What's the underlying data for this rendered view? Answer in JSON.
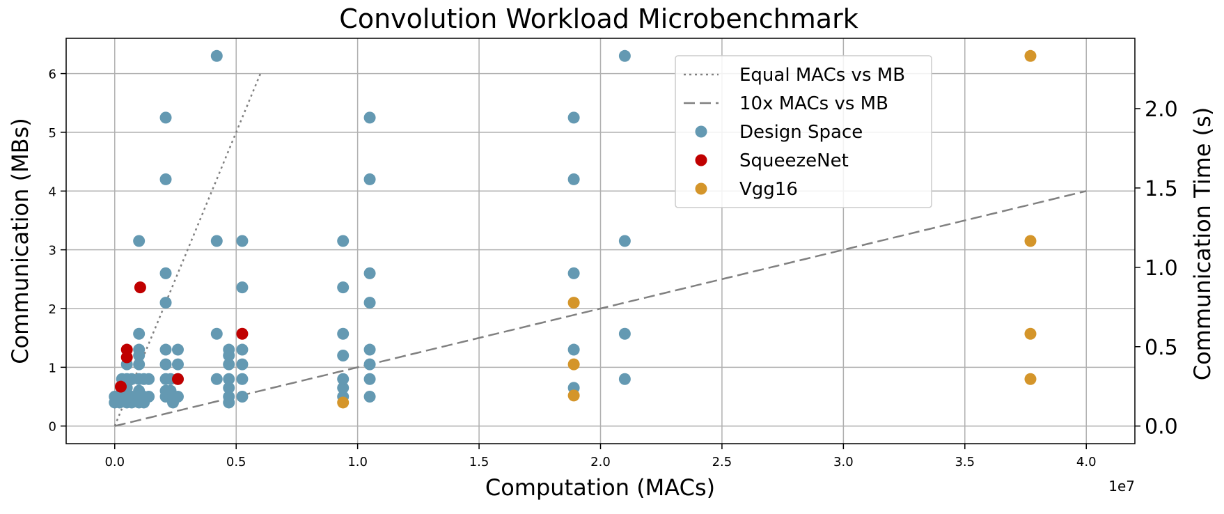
{
  "chart_data": {
    "type": "scatter",
    "title": "Convolution Workload Microbenchmark",
    "xlabel": "Computation (MACs)",
    "ylabel": "Communication (MBs)",
    "y2label": "Communication Time (s)",
    "x_offset_label": "1e7",
    "xlim": [
      -2000000,
      42000000
    ],
    "ylim": [
      -0.3,
      6.6
    ],
    "y2lim": [
      -0.111,
      2.443
    ],
    "x_ticks": [
      0,
      5000000,
      10000000,
      15000000,
      20000000,
      25000000,
      30000000,
      35000000,
      40000000
    ],
    "x_tick_labels": [
      "0.0",
      "0.5",
      "1.0",
      "1.5",
      "2.0",
      "2.5",
      "3.0",
      "3.5",
      "4.0"
    ],
    "y_ticks": [
      0,
      1,
      2,
      3,
      4,
      5,
      6
    ],
    "y_tick_labels": [
      "0",
      "1",
      "2",
      "3",
      "4",
      "5",
      "6"
    ],
    "y2_ticks": [
      0,
      0.5,
      1.0,
      1.5,
      2.0
    ],
    "y2_tick_labels": [
      "0.0",
      "0.5",
      "1.0",
      "1.5",
      "2.0"
    ],
    "grid": true,
    "legend_position": "top-right",
    "lines": [
      {
        "name": "Equal MACs vs MB",
        "style": "dotted",
        "color": "#808080",
        "x": [
          0,
          6000000
        ],
        "y": [
          0,
          6.0
        ]
      },
      {
        "name": "10x MACs vs MB",
        "style": "dashed",
        "color": "#808080",
        "x": [
          0,
          40000000
        ],
        "y": [
          0,
          4.0
        ]
      }
    ],
    "series": [
      {
        "name": "Design Space",
        "color": "#6499b2",
        "points": [
          [
            0,
            0.4
          ],
          [
            0,
            0.5
          ],
          [
            200000,
            0.4
          ],
          [
            200000,
            0.5
          ],
          [
            300000,
            0.45
          ],
          [
            300000,
            0.6
          ],
          [
            300000,
            0.8
          ],
          [
            500000,
            0.4
          ],
          [
            500000,
            0.5
          ],
          [
            500000,
            0.65
          ],
          [
            500000,
            0.8
          ],
          [
            500000,
            1.05
          ],
          [
            700000,
            0.4
          ],
          [
            700000,
            0.5
          ],
          [
            700000,
            0.8
          ],
          [
            1000000,
            0.4
          ],
          [
            1000000,
            0.5
          ],
          [
            1000000,
            0.6
          ],
          [
            1000000,
            0.8
          ],
          [
            1000000,
            1.05
          ],
          [
            1000000,
            1.2
          ],
          [
            1000000,
            1.3
          ],
          [
            1000000,
            1.57
          ],
          [
            1000000,
            3.15
          ],
          [
            1200000,
            0.4
          ],
          [
            1200000,
            0.5
          ],
          [
            1200000,
            0.8
          ],
          [
            1400000,
            0.5
          ],
          [
            1400000,
            0.8
          ],
          [
            2100000,
            0.5
          ],
          [
            2100000,
            0.6
          ],
          [
            2100000,
            0.8
          ],
          [
            2100000,
            1.05
          ],
          [
            2100000,
            1.3
          ],
          [
            2100000,
            2.1
          ],
          [
            2100000,
            2.6
          ],
          [
            2100000,
            4.2
          ],
          [
            2100000,
            5.25
          ],
          [
            2300000,
            0.5
          ],
          [
            2300000,
            0.6
          ],
          [
            2300000,
            0.8
          ],
          [
            2400000,
            0.4
          ],
          [
            2400000,
            0.5
          ],
          [
            2600000,
            0.5
          ],
          [
            2600000,
            0.8
          ],
          [
            2600000,
            1.05
          ],
          [
            2600000,
            1.3
          ],
          [
            4200000,
            0.8
          ],
          [
            4200000,
            1.57
          ],
          [
            4200000,
            3.15
          ],
          [
            4200000,
            6.3
          ],
          [
            4700000,
            0.4
          ],
          [
            4700000,
            0.5
          ],
          [
            4700000,
            0.65
          ],
          [
            4700000,
            0.8
          ],
          [
            4700000,
            1.05
          ],
          [
            4700000,
            1.2
          ],
          [
            4700000,
            1.3
          ],
          [
            5250000,
            0.5
          ],
          [
            5250000,
            0.8
          ],
          [
            5250000,
            1.05
          ],
          [
            5250000,
            1.3
          ],
          [
            5250000,
            2.36
          ],
          [
            5250000,
            3.15
          ],
          [
            9400000,
            0.5
          ],
          [
            9400000,
            0.65
          ],
          [
            9400000,
            0.8
          ],
          [
            9400000,
            1.2
          ],
          [
            9400000,
            1.57
          ],
          [
            9400000,
            2.36
          ],
          [
            9400000,
            3.15
          ],
          [
            10500000,
            0.5
          ],
          [
            10500000,
            0.8
          ],
          [
            10500000,
            1.05
          ],
          [
            10500000,
            1.3
          ],
          [
            10500000,
            2.1
          ],
          [
            10500000,
            2.6
          ],
          [
            10500000,
            4.2
          ],
          [
            10500000,
            5.25
          ],
          [
            18900000,
            0.65
          ],
          [
            18900000,
            1.3
          ],
          [
            18900000,
            2.6
          ],
          [
            18900000,
            4.2
          ],
          [
            18900000,
            5.25
          ],
          [
            21000000,
            0.8
          ],
          [
            21000000,
            1.57
          ],
          [
            21000000,
            3.15
          ],
          [
            21000000,
            6.3
          ]
        ]
      },
      {
        "name": "SqueezeNet",
        "color": "#c00000",
        "points": [
          [
            250000,
            0.67
          ],
          [
            500000,
            1.17
          ],
          [
            500000,
            1.3
          ],
          [
            1050000,
            2.36
          ],
          [
            2600000,
            0.8
          ],
          [
            5250000,
            1.57
          ]
        ]
      },
      {
        "name": "Vgg16",
        "color": "#d4952a",
        "points": [
          [
            9400000,
            0.4
          ],
          [
            18900000,
            0.52
          ],
          [
            18900000,
            1.05
          ],
          [
            18900000,
            2.1
          ],
          [
            37700000,
            0.8
          ],
          [
            37700000,
            1.57
          ],
          [
            37700000,
            3.15
          ],
          [
            37700000,
            6.3
          ]
        ]
      }
    ]
  }
}
